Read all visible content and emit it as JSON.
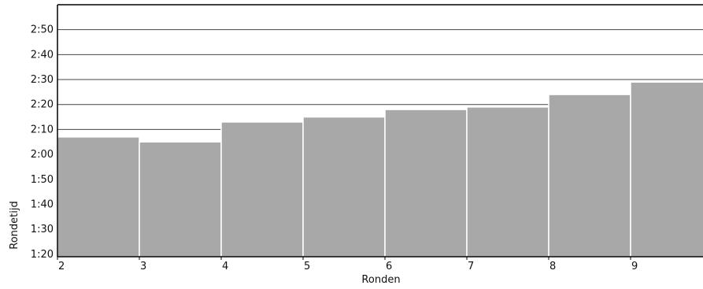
{
  "chart_data": {
    "type": "bar",
    "xlabel": "Ronden",
    "ylabel": "Rondetijd",
    "x_tick_labels": [
      "2",
      "3",
      "4",
      "5",
      "6",
      "7",
      "8",
      "9"
    ],
    "y_tick_labels": [
      "1:20",
      "1:30",
      "1:40",
      "1:50",
      "2:00",
      "2:10",
      "2:20",
      "2:30",
      "2:40",
      "2:50"
    ],
    "ylim_seconds": [
      79,
      180
    ],
    "categories": [
      "2",
      "3",
      "4",
      "5",
      "6",
      "7",
      "8",
      "9"
    ],
    "values_seconds": [
      127,
      125,
      133,
      135,
      138,
      139,
      144,
      149
    ],
    "values": [
      "2:07",
      "2:05",
      "2:13",
      "2:15",
      "2:18",
      "2:19",
      "2:24",
      "2:29"
    ],
    "grid": true,
    "bar_color": "#a8a8a8"
  }
}
